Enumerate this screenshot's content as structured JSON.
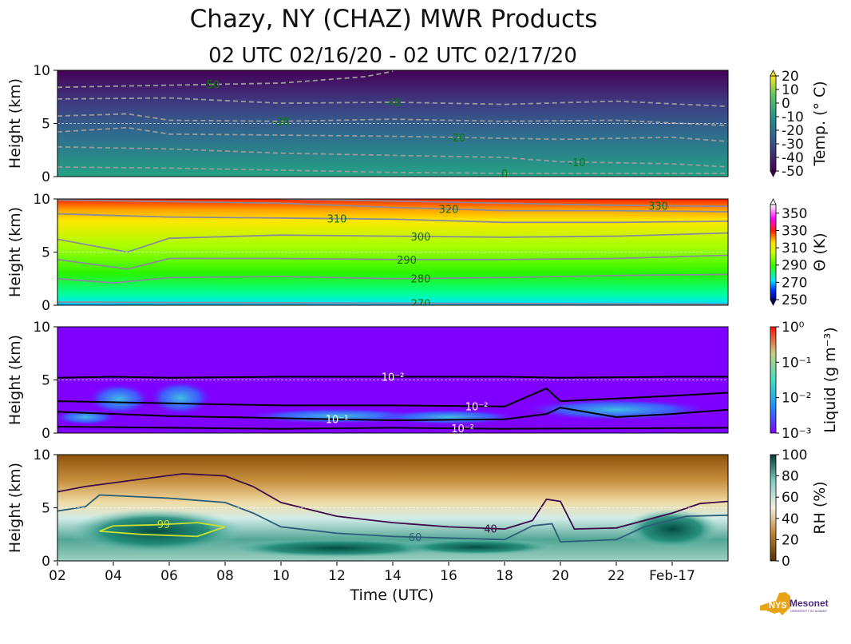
{
  "title": "Chazy, NY (CHAZ) MWR Products",
  "subtitle": "02 UTC 02/16/20 - 02 UTC 02/17/20",
  "xlabel": "Time (UTC)",
  "logo_text": {
    "main": "NYS Mesonet",
    "sub": "UNIVERSITY AT ALBANY"
  },
  "chart_data": [
    {
      "type": "heatmap",
      "name": "temperature",
      "ylabel": "Height (km)",
      "ylim": [
        0,
        10
      ],
      "yticks": [
        "0",
        "5",
        "10"
      ],
      "colorbar": {
        "label": "Temp. (° C)",
        "ticks": [
          "20",
          "10",
          "0",
          "-10",
          "-20",
          "-30",
          "-40",
          "-50"
        ],
        "range": [
          -50,
          20
        ]
      },
      "contours": [
        {
          "level": "-50",
          "label_t": 7.5,
          "pts": [
            [
              2,
              8.4
            ],
            [
              6,
              8.6
            ],
            [
              10,
              8.8
            ],
            [
              13,
              9.4
            ],
            [
              14,
              9.9
            ]
          ]
        },
        {
          "level": "-40",
          "label_t": 14,
          "pts": [
            [
              2,
              7.3
            ],
            [
              6,
              7.4
            ],
            [
              10,
              6.9
            ],
            [
              14,
              7.0
            ],
            [
              18,
              6.8
            ],
            [
              22,
              7.1
            ],
            [
              26,
              6.6
            ]
          ]
        },
        {
          "level": "-30",
          "label_t": 10,
          "pts": [
            [
              2,
              5.7
            ],
            [
              4.5,
              5.9
            ],
            [
              6,
              5.3
            ],
            [
              10,
              5.2
            ],
            [
              14,
              5.4
            ],
            [
              18,
              5.2
            ],
            [
              22,
              5.3
            ],
            [
              26,
              4.8
            ]
          ]
        },
        {
          "level": "-20",
          "label_t": 16.3,
          "pts": [
            [
              2,
              4.2
            ],
            [
              4.5,
              4.6
            ],
            [
              6,
              4.0
            ],
            [
              10,
              3.9
            ],
            [
              14,
              3.8
            ],
            [
              18,
              3.6
            ],
            [
              20,
              3.5
            ],
            [
              24,
              3.7
            ],
            [
              26,
              3.3
            ]
          ]
        },
        {
          "level": "-10",
          "label_t": 20.6,
          "pts": [
            [
              2,
              2.8
            ],
            [
              6,
              2.6
            ],
            [
              10,
              2.2
            ],
            [
              14,
              2.0
            ],
            [
              18,
              1.8
            ],
            [
              20,
              1.4
            ],
            [
              24,
              1.2
            ],
            [
              26,
              0.9
            ]
          ]
        },
        {
          "level": "0",
          "label_t": 18,
          "pts": [
            [
              2,
              0.9
            ],
            [
              6,
              0.8
            ],
            [
              10,
              0.6
            ],
            [
              14,
              0.4
            ],
            [
              18,
              0.3
            ],
            [
              26,
              0.3
            ]
          ]
        }
      ]
    },
    {
      "type": "heatmap",
      "name": "potential-temperature",
      "ylabel": "Height (km)",
      "ylim": [
        0,
        10
      ],
      "yticks": [
        "0",
        "5",
        "10"
      ],
      "colorbar": {
        "label": "Θ (K)",
        "ticks": [
          "350",
          "330",
          "310",
          "290",
          "270",
          "250"
        ],
        "range": [
          250,
          360
        ]
      },
      "contours": [
        {
          "level": "270",
          "label_t": 15,
          "pts": [
            [
              2,
              0.3
            ],
            [
              26,
              0.1
            ]
          ]
        },
        {
          "level": "280",
          "label_t": 15,
          "pts": [
            [
              2,
              2.5
            ],
            [
              4,
              2.1
            ],
            [
              6,
              2.6
            ],
            [
              10,
              2.7
            ],
            [
              14,
              2.5
            ],
            [
              18,
              2.6
            ],
            [
              22,
              2.8
            ],
            [
              26,
              2.9
            ]
          ]
        },
        {
          "level": "290",
          "label_t": 14.5,
          "pts": [
            [
              2,
              4.3
            ],
            [
              4.5,
              3.4
            ],
            [
              6,
              4.4
            ],
            [
              10,
              4.4
            ],
            [
              14,
              4.3
            ],
            [
              18,
              4.3
            ],
            [
              22,
              4.4
            ],
            [
              26,
              4.7
            ]
          ]
        },
        {
          "level": "300",
          "label_t": 15,
          "pts": [
            [
              2,
              6.2
            ],
            [
              4.5,
              5.0
            ],
            [
              6,
              6.3
            ],
            [
              10,
              6.6
            ],
            [
              14,
              6.5
            ],
            [
              18,
              6.4
            ],
            [
              22,
              6.5
            ],
            [
              26,
              6.8
            ]
          ]
        },
        {
          "level": "310",
          "label_t": 12,
          "pts": [
            [
              2,
              8.6
            ],
            [
              6,
              8.3
            ],
            [
              10,
              8.2
            ],
            [
              14,
              8.1
            ],
            [
              18,
              7.8
            ],
            [
              22,
              7.8
            ],
            [
              26,
              7.9
            ]
          ]
        },
        {
          "level": "320",
          "label_t": 16,
          "pts": [
            [
              2,
              9.9
            ],
            [
              10,
              9.6
            ],
            [
              14,
              9.2
            ],
            [
              18,
              8.9
            ],
            [
              22,
              8.9
            ],
            [
              26,
              8.8
            ]
          ]
        },
        {
          "level": "330",
          "label_t": 23.5,
          "pts": [
            [
              10,
              10
            ],
            [
              16,
              9.7
            ],
            [
              22,
              9.4
            ],
            [
              26,
              9.3
            ]
          ]
        }
      ]
    },
    {
      "type": "heatmap",
      "name": "liquid-water",
      "ylabel": "Height (km)",
      "ylim": [
        0,
        10
      ],
      "yticks": [
        "0",
        "5",
        "10"
      ],
      "colorbar": {
        "label": "Liquid (g m⁻³)",
        "ticks": [
          "10⁰",
          "10⁻¹",
          "10⁻²",
          "10⁻³"
        ],
        "range": [
          0.001,
          1
        ],
        "scale": "log"
      },
      "contours": [
        {
          "level": "10⁻²",
          "label_t": 14,
          "pts": [
            [
              2,
              5.2
            ],
            [
              4,
              5.3
            ],
            [
              6,
              5.2
            ],
            [
              10,
              5.3
            ],
            [
              14,
              5.3
            ],
            [
              18,
              5.3
            ],
            [
              20,
              5.2
            ],
            [
              24,
              5.3
            ],
            [
              26,
              5.3
            ]
          ]
        },
        {
          "level": "10⁻¹",
          "label_t": 12,
          "pts": [
            [
              2,
              2.0
            ],
            [
              6,
              1.6
            ],
            [
              10,
              1.4
            ],
            [
              14,
              1.2
            ],
            [
              18,
              1.3
            ],
            [
              19.5,
              1.8
            ],
            [
              20,
              2.4
            ],
            [
              22,
              1.5
            ],
            [
              24,
              1.8
            ],
            [
              26,
              2.2
            ]
          ]
        },
        {
          "level": "10⁻²",
          "label_t": 17,
          "pts": [
            [
              2,
              3.0
            ],
            [
              6,
              2.8
            ],
            [
              10,
              2.6
            ],
            [
              14,
              2.6
            ],
            [
              18,
              2.5
            ],
            [
              19.5,
              4.2
            ],
            [
              20,
              3.0
            ],
            [
              24,
              3.5
            ],
            [
              26,
              3.8
            ]
          ]
        },
        {
          "level": "10⁻²",
          "label_t": 16.5,
          "pts": [
            [
              2,
              0.6
            ],
            [
              6,
              0.5
            ],
            [
              10,
              0.4
            ],
            [
              14,
              0.5
            ],
            [
              18,
              0.4
            ],
            [
              26,
              0.5
            ]
          ]
        }
      ]
    },
    {
      "type": "heatmap",
      "name": "relative-humidity",
      "ylabel": "Height (km)",
      "ylim": [
        0,
        10
      ],
      "yticks": [
        "0",
        "5",
        "10"
      ],
      "colorbar": {
        "label": "RH (%)",
        "ticks": [
          "100",
          "80",
          "60",
          "40",
          "20",
          "0"
        ],
        "range": [
          0,
          100
        ]
      },
      "contours": [
        {
          "level": "40",
          "label_t": 17.5,
          "pts": [
            [
              2,
              6.5
            ],
            [
              3,
              7
            ],
            [
              5,
              7.7
            ],
            [
              6.5,
              8.2
            ],
            [
              8,
              8.0
            ],
            [
              9,
              7
            ],
            [
              10,
              5.5
            ],
            [
              12,
              4.2
            ],
            [
              14,
              3.6
            ],
            [
              16,
              3.2
            ],
            [
              18,
              3.0
            ],
            [
              19,
              3.8
            ],
            [
              19.5,
              5.8
            ],
            [
              20,
              5.6
            ],
            [
              20.5,
              3.0
            ],
            [
              22,
              3.1
            ],
            [
              24,
              4.5
            ],
            [
              25,
              5.4
            ],
            [
              26,
              5.6
            ]
          ]
        },
        {
          "level": "60",
          "label_t": 14.8,
          "pts": [
            [
              2,
              4.7
            ],
            [
              3,
              5.1
            ],
            [
              3.5,
              6.2
            ],
            [
              6,
              5.9
            ],
            [
              8,
              5.5
            ],
            [
              9,
              4.5
            ],
            [
              10,
              3.2
            ],
            [
              12,
              2.6
            ],
            [
              14,
              2.3
            ],
            [
              18,
              2.0
            ],
            [
              19,
              3.3
            ],
            [
              19.7,
              3.5
            ],
            [
              20,
              1.8
            ],
            [
              22,
              2.0
            ],
            [
              23,
              3.2
            ],
            [
              24.5,
              4.2
            ],
            [
              26,
              4.3
            ]
          ]
        },
        {
          "level": "99",
          "label_t": 5.8,
          "pts": [
            [
              3.5,
              2.8
            ],
            [
              4,
              3.3
            ],
            [
              5.5,
              3.4
            ],
            [
              7,
              3.6
            ],
            [
              8,
              3.2
            ],
            [
              7,
              2.3
            ],
            [
              5,
              2.5
            ],
            [
              3.5,
              2.8
            ]
          ]
        }
      ]
    }
  ],
  "xticks": [
    {
      "t": 2,
      "label": "02"
    },
    {
      "t": 4,
      "label": "04"
    },
    {
      "t": 6,
      "label": "06"
    },
    {
      "t": 8,
      "label": "08"
    },
    {
      "t": 10,
      "label": "10"
    },
    {
      "t": 12,
      "label": "12"
    },
    {
      "t": 14,
      "label": "14"
    },
    {
      "t": 16,
      "label": "16"
    },
    {
      "t": 18,
      "label": "18"
    },
    {
      "t": 20,
      "label": "20"
    },
    {
      "t": 22,
      "label": "22"
    },
    {
      "t": 24,
      "label": "Feb-17"
    }
  ],
  "xlim": [
    2,
    26
  ]
}
